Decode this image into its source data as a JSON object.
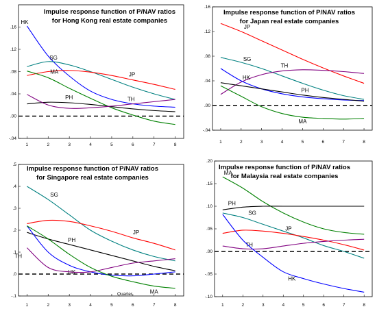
{
  "chart_data": [
    {
      "type": "line",
      "title": [
        "Impulse response function of P/NAV ratios",
        "for Hong Kong real estate companies"
      ],
      "x": [
        1,
        2,
        3,
        4,
        5,
        6,
        7,
        8
      ],
      "x_tick_labels": [
        "1",
        "2",
        "3",
        "4",
        "5",
        "6",
        "7",
        "8"
      ],
      "ylim": [
        -0.04,
        0.2
      ],
      "y_ticks": [
        -0.04,
        0.0,
        0.04,
        0.08,
        0.12,
        0.16
      ],
      "y_tick_labels": [
        "-.04",
        ".00",
        ".04",
        ".08",
        ".12",
        ".16"
      ],
      "zero_line": "dashed",
      "series": [
        {
          "name": "HK",
          "color": "#0000ff",
          "values": [
            0.162,
            0.108,
            0.072,
            0.045,
            0.03,
            0.022,
            0.018,
            0.016
          ]
        },
        {
          "name": "SG",
          "color": "#008080",
          "values": [
            0.089,
            0.098,
            0.092,
            0.08,
            0.066,
            0.052,
            0.04,
            0.03
          ]
        },
        {
          "name": "JP",
          "color": "#ff0000",
          "values": [
            0.073,
            0.08,
            0.082,
            0.079,
            0.073,
            0.065,
            0.057,
            0.048
          ]
        },
        {
          "name": "MA",
          "color": "#008000",
          "values": [
            0.081,
            0.069,
            0.05,
            0.032,
            0.015,
            0.002,
            -0.009,
            -0.015
          ]
        },
        {
          "name": "PH",
          "color": "#000000",
          "values": [
            0.022,
            0.025,
            0.024,
            0.021,
            0.017,
            0.013,
            0.01,
            0.008
          ]
        },
        {
          "name": "TH",
          "color": "#800080",
          "values": [
            0.039,
            0.02,
            0.014,
            0.015,
            0.018,
            0.022,
            0.026,
            0.03
          ]
        }
      ]
    },
    {
      "type": "line",
      "title": [
        "Impulse response function of P/NAV ratios",
        "for Japan real estate companies"
      ],
      "x": [
        1,
        2,
        3,
        4,
        5,
        6,
        7,
        8
      ],
      "x_tick_labels": [
        "1",
        "2",
        "3",
        "4",
        "5",
        "6",
        "7",
        "8"
      ],
      "ylim": [
        -0.04,
        0.16
      ],
      "y_ticks": [
        -0.04,
        0.0,
        0.04,
        0.08,
        0.12,
        0.16
      ],
      "y_tick_labels": [
        "-.04",
        ".00",
        ".04",
        ".08",
        ".12",
        ".16"
      ],
      "zero_line": "dashed",
      "series": [
        {
          "name": "JP",
          "color": "#ff0000",
          "values": [
            0.133,
            0.12,
            0.105,
            0.09,
            0.075,
            0.061,
            0.048,
            0.036
          ]
        },
        {
          "name": "SG",
          "color": "#008080",
          "values": [
            0.078,
            0.07,
            0.06,
            0.048,
            0.036,
            0.025,
            0.016,
            0.01
          ]
        },
        {
          "name": "TH",
          "color": "#800080",
          "values": [
            0.018,
            0.038,
            0.05,
            0.056,
            0.058,
            0.057,
            0.055,
            0.052
          ]
        },
        {
          "name": "HK",
          "color": "#0000ff",
          "values": [
            0.06,
            0.04,
            0.027,
            0.019,
            0.014,
            0.011,
            0.009,
            0.008
          ]
        },
        {
          "name": "PH",
          "color": "#000000",
          "values": [
            0.037,
            0.032,
            0.027,
            0.022,
            0.017,
            0.013,
            0.01,
            0.007
          ]
        },
        {
          "name": "MA",
          "color": "#008000",
          "values": [
            0.032,
            0.015,
            -0.002,
            -0.013,
            -0.019,
            -0.021,
            -0.022,
            -0.021
          ]
        }
      ]
    },
    {
      "type": "line",
      "title": [
        "Impulse response function of P/NAV ratios",
        "for Singapore real estate companies"
      ],
      "x": [
        1,
        2,
        3,
        4,
        5,
        6,
        7,
        8
      ],
      "x_tick_labels": [
        "1",
        "2",
        "3",
        "4",
        "5",
        "6",
        "7",
        "8"
      ],
      "ylim": [
        -0.1,
        0.5
      ],
      "y_ticks": [
        -0.1,
        0.0,
        0.1,
        0.2,
        0.3,
        0.4,
        0.5
      ],
      "y_tick_labels": [
        "-.1",
        ".0",
        ".1",
        ".2",
        ".3",
        ".4",
        ".5"
      ],
      "zero_line": "dashed",
      "annotations": [
        "Quarter"
      ],
      "series": [
        {
          "name": "SG",
          "color": "#008080",
          "values": [
            0.4,
            0.34,
            0.27,
            0.2,
            0.15,
            0.11,
            0.08,
            0.06
          ]
        },
        {
          "name": "JP",
          "color": "#ff0000",
          "values": [
            0.23,
            0.245,
            0.24,
            0.22,
            0.195,
            0.165,
            0.14,
            0.11
          ]
        },
        {
          "name": "PH",
          "color": "#000000",
          "values": [
            0.19,
            0.16,
            0.135,
            0.11,
            0.085,
            0.06,
            0.035,
            0.015
          ]
        },
        {
          "name": "HK",
          "color": "#0000ff",
          "values": [
            0.22,
            0.1,
            0.04,
            0.01,
            -0.005,
            -0.008,
            0.0,
            0.01
          ]
        },
        {
          "name": "TH",
          "color": "#800080",
          "values": [
            0.12,
            0.03,
            0.01,
            0.01,
            0.03,
            0.05,
            0.06,
            0.07
          ]
        },
        {
          "name": "MA",
          "color": "#008000",
          "values": [
            0.22,
            0.16,
            0.09,
            0.03,
            -0.01,
            -0.035,
            -0.055,
            -0.065
          ]
        }
      ]
    },
    {
      "type": "line",
      "title": [
        "Impulse response function of P/NAV ratios",
        "for Malaysia real estate companies"
      ],
      "x": [
        1,
        2,
        3,
        4,
        5,
        6,
        7,
        8
      ],
      "x_tick_labels": [
        "1",
        "2",
        "3",
        "4",
        "5",
        "6",
        "7",
        "8"
      ],
      "ylim": [
        -0.1,
        0.2
      ],
      "y_ticks": [
        -0.1,
        -0.05,
        0.0,
        0.05,
        0.1,
        0.15,
        0.2
      ],
      "y_tick_labels": [
        "-.10",
        "-.05",
        ".00",
        ".05",
        ".10",
        ".15",
        ".20"
      ],
      "zero_line": "dashed",
      "series": [
        {
          "name": "MA",
          "color": "#008000",
          "values": [
            0.165,
            0.14,
            0.11,
            0.085,
            0.065,
            0.05,
            0.042,
            0.038
          ]
        },
        {
          "name": "PH",
          "color": "#000000",
          "values": [
            0.092,
            0.098,
            0.1,
            0.1,
            0.1,
            0.1,
            0.1,
            0.1
          ]
        },
        {
          "name": "SG",
          "color": "#008080",
          "values": [
            0.085,
            0.075,
            0.06,
            0.045,
            0.03,
            0.013,
            0.0,
            -0.015
          ]
        },
        {
          "name": "JP",
          "color": "#ff0000",
          "values": [
            0.04,
            0.047,
            0.045,
            0.04,
            0.033,
            0.025,
            0.015,
            0.003
          ]
        },
        {
          "name": "TH",
          "color": "#800080",
          "values": [
            0.012,
            0.006,
            0.006,
            0.012,
            0.018,
            0.022,
            0.025,
            0.027
          ]
        },
        {
          "name": "HK",
          "color": "#0000ff",
          "values": [
            0.082,
            0.025,
            -0.013,
            -0.045,
            -0.06,
            -0.072,
            -0.082,
            -0.09
          ]
        }
      ]
    }
  ]
}
